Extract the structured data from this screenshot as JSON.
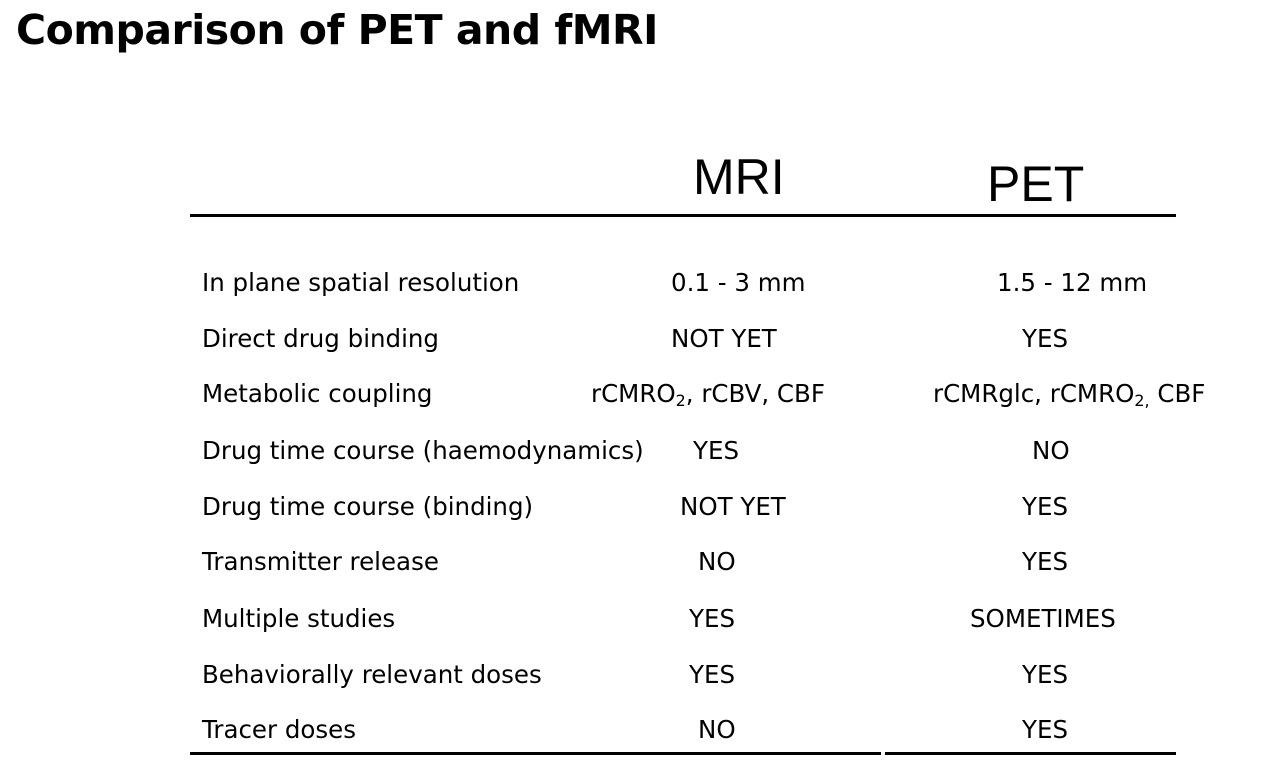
{
  "title": "Comparison of PET and fMRI",
  "table": {
    "columns": [
      "MRI",
      "PET"
    ],
    "rows": [
      {
        "label": "In plane spatial resolution",
        "mri": "0.1 - 3 mm",
        "pet": "1.5 - 12 mm"
      },
      {
        "label": "Direct drug binding",
        "mri": "NOT YET",
        "pet": "YES"
      },
      {
        "label": "Metabolic coupling",
        "mri_a": "rCMRO",
        "mri_sub": "2",
        "mri_b": ", rCBV, CBF",
        "pet_a": "rCMRglc, rCMRO",
        "pet_sub": "2,",
        "pet_b": " CBF"
      },
      {
        "label": "Drug time course (haemodynamics)",
        "mri": "YES",
        "pet": "NO"
      },
      {
        "label": "Drug time course (binding)",
        "mri": "NOT YET",
        "pet": "YES"
      },
      {
        "label": "Transmitter release",
        "mri": "NO",
        "pet": "YES"
      },
      {
        "label": "Multiple studies",
        "mri": "YES",
        "pet": "SOMETIMES"
      },
      {
        "label": "Behaviorally relevant doses",
        "mri": "YES",
        "pet": "YES"
      },
      {
        "label": "Tracer doses",
        "mri": "NO",
        "pet": "YES"
      }
    ]
  }
}
